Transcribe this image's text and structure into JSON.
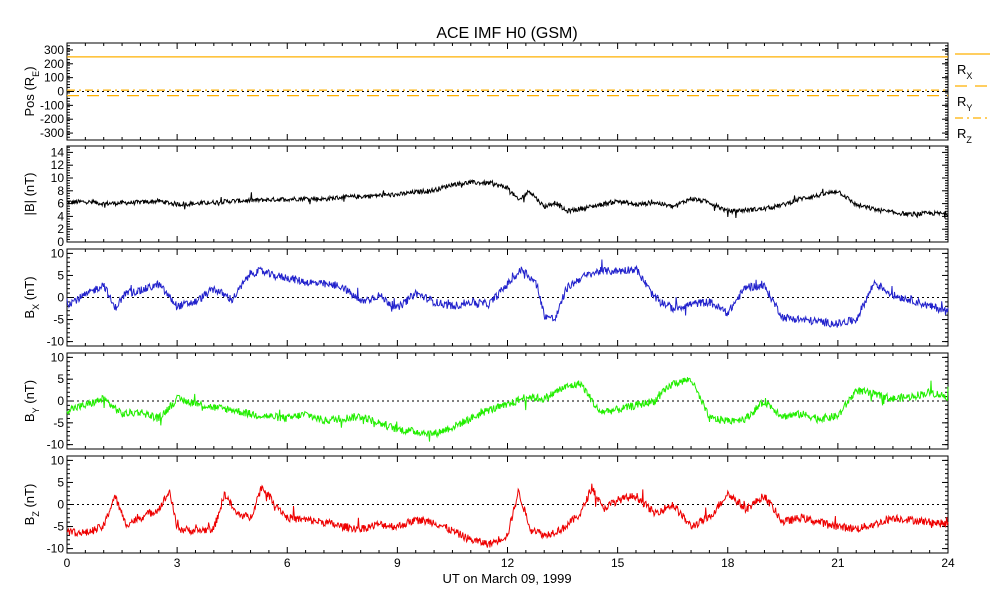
{
  "title": "ACE IMF H0 (GSM)",
  "xlabel": "UT on March 09, 1999",
  "x_ticks": [
    "0",
    "3",
    "6",
    "9",
    "12",
    "15",
    "18",
    "21",
    "24"
  ],
  "colors": {
    "pos_x": "#ffb000",
    "pos_yz": "#ffb000",
    "btot": "#000000",
    "bx": "#2222cc",
    "by": "#22ee00",
    "bz": "#ee0000"
  },
  "chart_data": [
    {
      "type": "line",
      "panel": "pos",
      "ylabel": [
        "Pos (R",
        "E",
        ")"
      ],
      "ylim": [
        -350,
        350
      ],
      "y_ticks": [
        300,
        200,
        100,
        0,
        -100,
        -200,
        -300
      ],
      "zero_line": true,
      "series": [
        {
          "name": "R_X",
          "style": "solid",
          "x": [
            0,
            24
          ],
          "values": [
            250,
            250
          ]
        },
        {
          "name": "R_Y",
          "style": "dashed",
          "x": [
            0,
            24
          ],
          "values": [
            -30,
            -30
          ]
        },
        {
          "name": "R_Z",
          "style": "dashdot",
          "x": [
            0,
            24
          ],
          "values": [
            10,
            10
          ]
        }
      ],
      "legend": [
        {
          "label": "R",
          "sub": "X"
        },
        {
          "label": "R",
          "sub": "Y"
        },
        {
          "label": "R",
          "sub": "Z"
        }
      ]
    },
    {
      "type": "line",
      "panel": "btot",
      "ylabel": [
        "|B| (nT)"
      ],
      "ylim": [
        0,
        15
      ],
      "y_ticks": [
        14,
        12,
        10,
        8,
        6,
        4,
        2,
        0
      ],
      "zero_line": false,
      "series": [
        {
          "x": [
            0,
            0.5,
            1,
            1.5,
            2,
            2.5,
            3,
            3.5,
            4,
            4.5,
            5,
            5.5,
            6,
            6.5,
            7,
            7.5,
            8,
            8.5,
            9,
            9.5,
            10,
            10.5,
            11,
            11.5,
            12,
            12.3,
            12.6,
            13,
            13.3,
            13.6,
            14,
            14.5,
            15,
            15.5,
            16,
            16.5,
            17,
            17.5,
            18,
            18.5,
            19,
            19.5,
            20,
            20.5,
            21,
            21.5,
            22,
            22.5,
            23,
            23.5,
            24
          ],
          "values": [
            6.2,
            6.3,
            6.0,
            6.1,
            6.2,
            6.4,
            5.9,
            6.0,
            6.2,
            6.4,
            6.5,
            6.6,
            6.7,
            6.8,
            6.7,
            7.0,
            7.1,
            7.3,
            7.4,
            7.8,
            8.1,
            9.0,
            9.3,
            9.2,
            8.5,
            6.5,
            8.0,
            5.5,
            6.2,
            4.8,
            5.2,
            5.8,
            6.4,
            5.8,
            6.2,
            5.5,
            6.8,
            6.2,
            4.8,
            5.0,
            5.2,
            5.8,
            6.8,
            7.3,
            8.0,
            5.8,
            5.1,
            4.6,
            4.3,
            4.5,
            4.4
          ]
        }
      ]
    },
    {
      "type": "line",
      "panel": "bx",
      "ylabel": [
        "B",
        "X",
        " (nT)"
      ],
      "ylim": [
        -11,
        11
      ],
      "y_ticks": [
        10,
        5,
        0,
        -5,
        -10
      ],
      "zero_line": true,
      "series": [
        {
          "x": [
            0,
            0.5,
            1,
            1.3,
            1.6,
            2,
            2.5,
            3,
            3.5,
            4,
            4.5,
            5,
            5.3,
            5.6,
            6,
            6.5,
            7,
            7.5,
            8,
            8.5,
            9,
            9.5,
            10,
            10.5,
            11,
            11.5,
            12,
            12.4,
            12.8,
            13,
            13.3,
            13.6,
            14,
            14.5,
            15,
            15.5,
            16,
            16.5,
            17,
            17.5,
            18,
            18.5,
            19,
            19.5,
            20,
            20.5,
            21,
            21.5,
            22,
            22.5,
            23,
            23.5,
            24
          ],
          "values": [
            -1.5,
            0.5,
            3.0,
            -2.5,
            1.0,
            1.5,
            3.0,
            -2.0,
            -1.0,
            2.0,
            -0.5,
            5.5,
            6.0,
            5.0,
            4.5,
            3.5,
            3.0,
            2.5,
            -1.0,
            0.5,
            -2.5,
            1.0,
            -1.0,
            -2.0,
            -1.0,
            -1.5,
            3.0,
            6.5,
            3.0,
            -4.0,
            -5.0,
            2.0,
            4.5,
            6.0,
            6.0,
            6.5,
            0.0,
            -2.5,
            -1.5,
            -1.0,
            -3.5,
            2.5,
            2.5,
            -4.5,
            -5.0,
            -5.5,
            -6.0,
            -5.0,
            3.5,
            0.5,
            -0.5,
            -2.0,
            -3.0
          ]
        }
      ]
    },
    {
      "type": "line",
      "panel": "by",
      "ylabel": [
        "B",
        "Y",
        " (nT)"
      ],
      "ylim": [
        -11,
        11
      ],
      "y_ticks": [
        10,
        5,
        0,
        -5,
        -10
      ],
      "zero_line": true,
      "series": [
        {
          "x": [
            0,
            0.5,
            1,
            1.5,
            2,
            2.5,
            3,
            3.5,
            4,
            4.5,
            5,
            5.5,
            6,
            6.5,
            7,
            7.5,
            8,
            8.5,
            9,
            9.5,
            10,
            10.5,
            11,
            11.5,
            12,
            12.5,
            13,
            13.5,
            14,
            14.5,
            15,
            15.5,
            16,
            16.5,
            17,
            17.5,
            18,
            18.5,
            19,
            19.5,
            20,
            20.5,
            21,
            21.5,
            22,
            22.5,
            23,
            23.5,
            24
          ],
          "values": [
            -2.0,
            -1.0,
            0.5,
            -3.0,
            -2.5,
            -4.0,
            0.5,
            -0.5,
            -1.5,
            -2.0,
            -3.0,
            -3.5,
            -4.0,
            -3.0,
            -4.5,
            -4.0,
            -3.5,
            -5.0,
            -6.5,
            -7.0,
            -7.5,
            -6.0,
            -4.0,
            -2.0,
            -1.0,
            1.0,
            0.5,
            3.0,
            4.0,
            -2.5,
            -2.0,
            -1.0,
            0.0,
            4.0,
            5.0,
            -4.0,
            -4.5,
            -4.0,
            0.0,
            -3.5,
            -3.0,
            -4.0,
            -3.5,
            2.5,
            1.5,
            0.5,
            1.0,
            2.0,
            1.0
          ]
        }
      ]
    },
    {
      "type": "line",
      "panel": "bz",
      "ylabel": [
        "B",
        "Z",
        " (nT)"
      ],
      "ylim": [
        -11,
        11
      ],
      "y_ticks": [
        10,
        5,
        0,
        -5,
        -10
      ],
      "zero_line": true,
      "series": [
        {
          "x": [
            0,
            0.5,
            1,
            1.3,
            1.6,
            2,
            2.5,
            2.8,
            3,
            3.5,
            4,
            4.3,
            4.6,
            5,
            5.3,
            5.6,
            6,
            6.5,
            7,
            7.5,
            8,
            8.5,
            9,
            9.5,
            10,
            10.5,
            11,
            11.5,
            12,
            12.3,
            12.6,
            13,
            13.5,
            14,
            14.3,
            14.6,
            15,
            15.5,
            16,
            16.5,
            17,
            17.5,
            18,
            18.5,
            19,
            19.5,
            20,
            20.5,
            21,
            21.5,
            22,
            22.5,
            23,
            23.5,
            24
          ],
          "values": [
            -6.0,
            -6.5,
            -5.0,
            2.0,
            -4.5,
            -3.0,
            -1.0,
            3.0,
            -5.5,
            -6.0,
            -5.5,
            2.5,
            -2.0,
            -3.0,
            4.0,
            1.0,
            -3.0,
            -3.5,
            -4.0,
            -5.0,
            -5.5,
            -4.5,
            -5.0,
            -3.5,
            -4.0,
            -6.0,
            -8.0,
            -9.0,
            -7.0,
            3.0,
            -5.0,
            -7.0,
            -5.5,
            -2.0,
            4.0,
            -1.0,
            1.0,
            2.0,
            -2.0,
            0.0,
            -5.0,
            -3.0,
            2.5,
            -1.0,
            2.0,
            -4.0,
            -3.0,
            -4.0,
            -5.0,
            -5.5,
            -4.5,
            -3.0,
            -3.5,
            -4.0,
            -4.5
          ]
        }
      ]
    }
  ]
}
